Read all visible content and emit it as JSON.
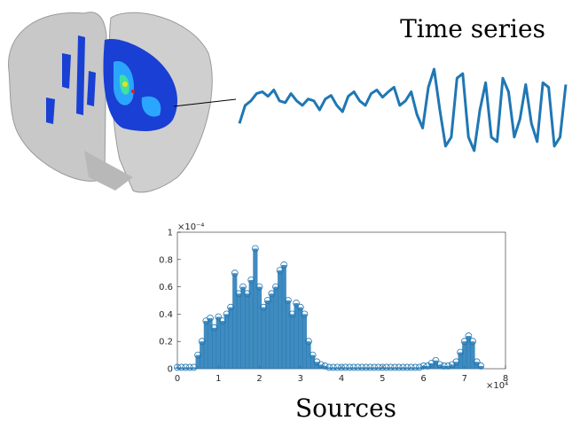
{
  "chart_data": [
    {
      "type": "line",
      "title": "Time series",
      "color": "#1f77b4",
      "values": [
        0.35,
        0.55,
        0.6,
        0.68,
        0.7,
        0.65,
        0.72,
        0.6,
        0.58,
        0.68,
        0.6,
        0.55,
        0.62,
        0.6,
        0.5,
        0.62,
        0.66,
        0.55,
        0.48,
        0.65,
        0.7,
        0.6,
        0.55,
        0.68,
        0.72,
        0.64,
        0.7,
        0.75,
        0.55,
        0.6,
        0.7,
        0.45,
        0.3,
        0.75,
        0.95,
        0.5,
        0.1,
        0.2,
        0.85,
        0.9,
        0.2,
        0.05,
        0.5,
        0.8,
        0.2,
        0.15,
        0.85,
        0.7,
        0.2,
        0.4,
        0.78,
        0.35,
        0.15,
        0.8,
        0.75,
        0.1,
        0.2,
        0.78
      ]
    },
    {
      "type": "scatter",
      "xlabel": "Sources",
      "color": "#1f77b4",
      "x_multiplier": "×10⁴",
      "y_multiplier": "×10⁻⁴",
      "x": [
        0,
        0.1,
        0.2,
        0.3,
        0.4,
        0.5,
        0.6,
        0.7,
        0.8,
        0.9,
        1.0,
        1.1,
        1.2,
        1.3,
        1.4,
        1.5,
        1.6,
        1.7,
        1.8,
        1.9,
        2.0,
        2.1,
        2.2,
        2.3,
        2.4,
        2.5,
        2.6,
        2.7,
        2.8,
        2.9,
        3.0,
        3.1,
        3.2,
        3.3,
        3.4,
        3.5,
        3.6,
        3.7,
        3.8,
        3.9,
        4.0,
        4.1,
        4.2,
        4.3,
        4.4,
        4.5,
        4.6,
        4.7,
        4.8,
        4.9,
        5.0,
        5.1,
        5.2,
        5.3,
        5.4,
        5.5,
        5.6,
        5.7,
        5.8,
        5.9,
        6.0,
        6.1,
        6.2,
        6.3,
        6.4,
        6.5,
        6.6,
        6.7,
        6.8,
        6.9,
        7.0,
        7.1,
        7.2,
        7.3,
        7.4
      ],
      "values": [
        0.01,
        0.01,
        0.01,
        0.01,
        0.01,
        0.1,
        0.2,
        0.35,
        0.37,
        0.3,
        0.38,
        0.35,
        0.4,
        0.45,
        0.7,
        0.55,
        0.6,
        0.55,
        0.65,
        0.88,
        0.6,
        0.45,
        0.5,
        0.55,
        0.6,
        0.72,
        0.76,
        0.5,
        0.4,
        0.48,
        0.45,
        0.4,
        0.2,
        0.1,
        0.05,
        0.03,
        0.02,
        0.01,
        0.01,
        0.01,
        0.01,
        0.01,
        0.01,
        0.01,
        0.01,
        0.01,
        0.01,
        0.01,
        0.01,
        0.01,
        0.01,
        0.01,
        0.01,
        0.01,
        0.01,
        0.01,
        0.01,
        0.01,
        0.01,
        0.01,
        0.02,
        0.02,
        0.04,
        0.06,
        0.03,
        0.02,
        0.02,
        0.03,
        0.05,
        0.12,
        0.2,
        0.24,
        0.2,
        0.05,
        0.02
      ],
      "xlim": [
        0,
        8
      ],
      "ylim": [
        0,
        1
      ],
      "xticks": [
        0,
        1,
        2,
        3,
        4,
        5,
        6,
        7,
        8
      ],
      "yticks": [
        0,
        0.2,
        0.4,
        0.6,
        0.8,
        1
      ]
    }
  ]
}
